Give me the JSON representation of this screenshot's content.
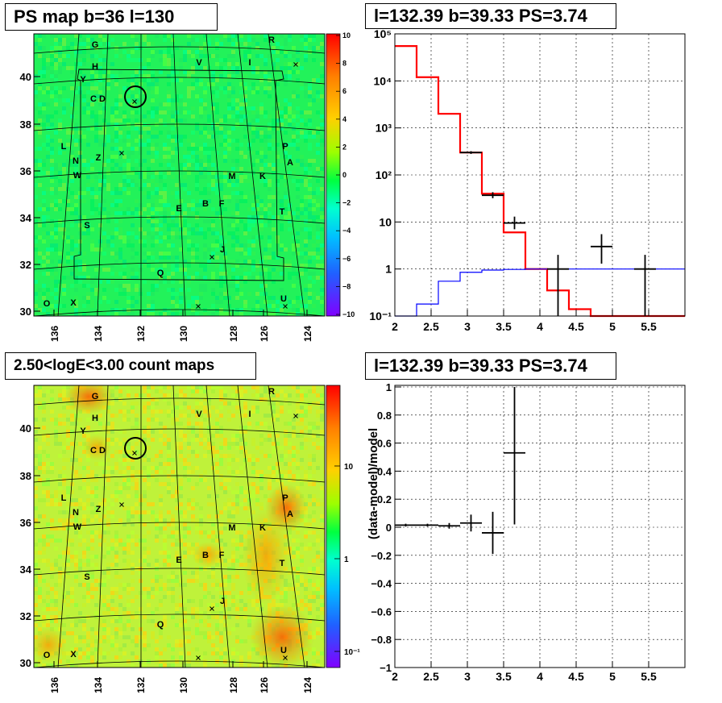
{
  "chart_data": [
    {
      "type": "heatmap",
      "title": "PS map b=36 l=130",
      "x_ticks": [
        "136",
        "134",
        "132",
        "130",
        "128",
        "126",
        "124"
      ],
      "y_ticks": [
        "30",
        "32",
        "34",
        "36",
        "38",
        "40"
      ],
      "colorbar_ticks": [
        "10",
        "8",
        "6",
        "4",
        "2",
        "0",
        "−2",
        "−4",
        "−6",
        "−8",
        "−10"
      ],
      "colorbar_range": [
        -10,
        10
      ],
      "labels": [
        "G",
        "R",
        "H",
        "V",
        "I",
        "Y",
        "C",
        "D",
        "L",
        "P",
        "N",
        "Z",
        "A",
        "W",
        "M",
        "K",
        "B",
        "F",
        "E",
        "T",
        "S",
        "J",
        "Q",
        "O",
        "X",
        "U"
      ]
    },
    {
      "type": "line",
      "title": "l=132.39 b=39.33 PS=3.74",
      "log_y": true,
      "xlim": [
        2,
        6
      ],
      "ylim": [
        0.1,
        100000
      ],
      "x_ticks": [
        "2",
        "2.5",
        "3",
        "3.5",
        "4",
        "4.5",
        "5",
        "5.5"
      ],
      "y_ticks": [
        "10⁻¹",
        "1",
        "10",
        "10²",
        "10³",
        "10⁴",
        "10⁵"
      ],
      "series": [
        {
          "color": "#ff0000",
          "bin_edges": [
            2.0,
            2.3,
            2.6,
            2.9,
            3.2,
            3.5,
            3.8,
            4.1,
            4.4,
            4.7,
            5.0,
            5.3,
            5.6,
            6.0
          ],
          "values": [
            55000,
            12000,
            2000,
            300,
            40,
            6,
            1.0,
            0.35,
            0.14,
            0.1,
            0.1,
            0.1,
            0.1
          ]
        },
        {
          "color": "#0000ff",
          "bin_edges": [
            2.0,
            2.3,
            2.6,
            2.9,
            3.2,
            3.5,
            3.8,
            4.1,
            4.4,
            4.7,
            5.0,
            5.3,
            5.6,
            6.0
          ],
          "values": [
            0.1,
            0.18,
            0.55,
            0.85,
            0.95,
            0.98,
            1.0,
            1.0,
            1.0,
            1.0,
            1.0,
            1.0,
            1.0
          ]
        },
        {
          "color": "#000000",
          "points": [
            {
              "x": 3.05,
              "y": 300,
              "xerr": 0.15,
              "ylo": 280,
              "yhi": 320
            },
            {
              "x": 3.35,
              "y": 37,
              "xerr": 0.15,
              "ylo": 32,
              "yhi": 43
            },
            {
              "x": 3.65,
              "y": 9.5,
              "xerr": 0.15,
              "ylo": 7,
              "yhi": 13
            },
            {
              "x": 4.25,
              "y": 1.0,
              "xerr": 0.15,
              "ylo": 0.1,
              "yhi": 2.0
            },
            {
              "x": 4.85,
              "y": 3.0,
              "xerr": 0.15,
              "ylo": 1.3,
              "yhi": 5.5
            },
            {
              "x": 5.45,
              "y": 1.0,
              "xerr": 0.15,
              "ylo": 0.1,
              "yhi": 2.0
            }
          ]
        }
      ]
    },
    {
      "type": "heatmap",
      "title": "2.50<logE<3.00 count maps",
      "x_ticks": [
        "136",
        "134",
        "132",
        "130",
        "128",
        "126",
        "124"
      ],
      "y_ticks": [
        "30",
        "32",
        "34",
        "36",
        "38",
        "40"
      ],
      "colorbar_ticks": [
        "10",
        "1",
        "10⁻¹"
      ],
      "labels": [
        "G",
        "R",
        "H",
        "V",
        "I",
        "Y",
        "C",
        "D",
        "L",
        "P",
        "N",
        "Z",
        "A",
        "W",
        "M",
        "K",
        "B",
        "F",
        "E",
        "T",
        "S",
        "J",
        "Q",
        "O",
        "X",
        "U"
      ]
    },
    {
      "type": "scatter",
      "title": "l=132.39 b=39.33 PS=3.74",
      "ylabel": "(data-model)/model",
      "xlim": [
        2,
        6
      ],
      "ylim": [
        -1,
        1
      ],
      "x_ticks": [
        "2",
        "2.5",
        "3",
        "3.5",
        "4",
        "4.5",
        "5",
        "5.5"
      ],
      "y_ticks": [
        "−1",
        "−0.8",
        "−0.6",
        "−0.4",
        "−0.2",
        "0",
        "0.2",
        "0.4",
        "0.6",
        "0.8",
        "1"
      ],
      "points": [
        {
          "x": 2.15,
          "y": 0.015,
          "xerr": 0.15,
          "yerr": 0.01
        },
        {
          "x": 2.45,
          "y": 0.015,
          "xerr": 0.15,
          "yerr": 0.01
        },
        {
          "x": 2.75,
          "y": 0.01,
          "xerr": 0.15,
          "yerr": 0.02
        },
        {
          "x": 3.05,
          "y": 0.03,
          "xerr": 0.15,
          "yerr": 0.06
        },
        {
          "x": 3.35,
          "y": -0.04,
          "xerr": 0.15,
          "yerr": 0.15
        },
        {
          "x": 3.65,
          "y": 0.53,
          "xerr": 0.15,
          "ylo": 0.02,
          "yhi": 1.0
        }
      ]
    }
  ]
}
